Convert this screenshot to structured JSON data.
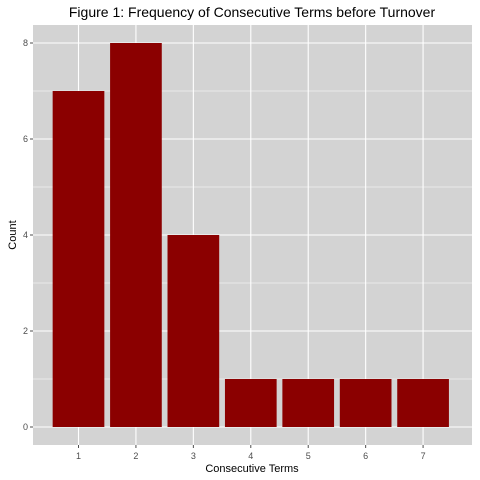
{
  "chart_data": {
    "type": "bar",
    "title": "Figure 1: Frequency of Consecutive Terms before Turnover",
    "xlabel": "Consecutive Terms",
    "ylabel": "Count",
    "categories": [
      "1",
      "2",
      "3",
      "4",
      "5",
      "6",
      "7"
    ],
    "values": [
      7,
      8,
      4,
      1,
      1,
      1,
      1
    ],
    "ylim": [
      0,
      8.35
    ],
    "yticks": [
      "0",
      "2",
      "4",
      "6",
      "8"
    ],
    "grid": true,
    "legend": "none",
    "colors": {
      "bar": "#8b0000",
      "panel": "#d3d3d3",
      "grid": "#ffffff"
    }
  }
}
